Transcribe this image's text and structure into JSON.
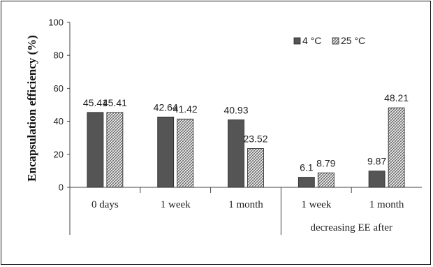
{
  "chart_data": {
    "type": "bar",
    "title": "",
    "ylabel": "Encapsulation efficiency (%)",
    "xlabel": "",
    "ylim": [
      0,
      100
    ],
    "yticks": [
      0,
      20,
      40,
      60,
      80,
      100
    ],
    "categories": [
      "0 days",
      "1 week",
      "1 month",
      "1 week",
      "1 month"
    ],
    "group_label": "decreasing EE after",
    "series": [
      {
        "name": "4 °C",
        "values": [
          45.41,
          42.64,
          40.93,
          6.1,
          9.87
        ],
        "labels": [
          "45.41",
          "42.64",
          "40.93",
          "6.1",
          "9.87"
        ],
        "color": "#555555",
        "pattern": "solid"
      },
      {
        "name": "25 °C",
        "values": [
          45.41,
          41.42,
          23.52,
          8.79,
          48.21
        ],
        "labels": [
          "45.41",
          "41.42",
          "23.52",
          "8.79",
          "48.21"
        ],
        "color": "#555555",
        "pattern": "crosshatch"
      }
    ],
    "legend_position": "top-right",
    "grid": false
  }
}
